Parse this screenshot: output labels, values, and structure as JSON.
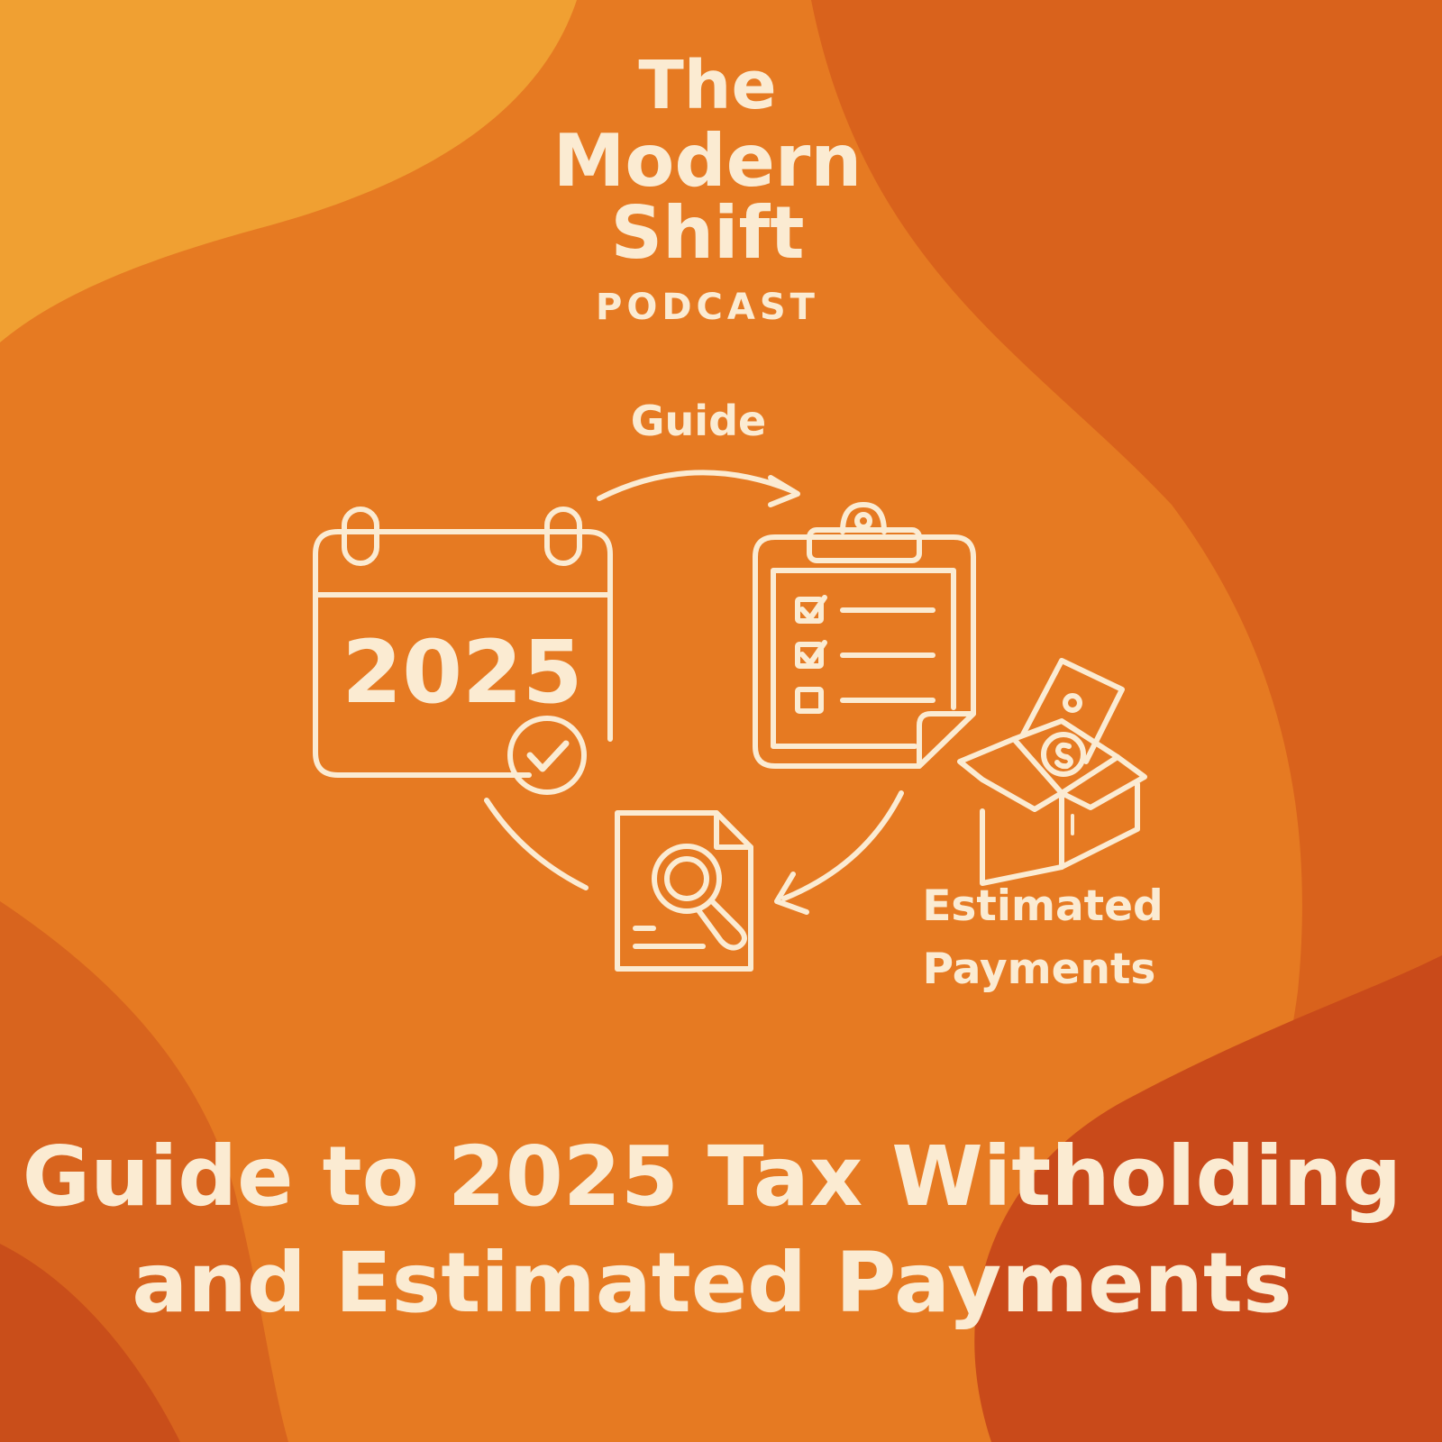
{
  "colors": {
    "background": "#E67A22",
    "highlight": "#F0A032",
    "dark": "#D25A1C",
    "darker": "#C4441A",
    "text": "#FBEBD2"
  },
  "logo": {
    "line1": "The",
    "line2": "Modern",
    "line3": "Shift",
    "line4": "PODCAST"
  },
  "diagram": {
    "guide_label": "Guide",
    "calendar_year": "2025",
    "estimated_label_line1": "Estimated",
    "estimated_label_line2": "Payments",
    "icons": [
      "calendar-check-icon",
      "clipboard-checklist-icon",
      "document-search-icon",
      "money-box-icon",
      "cycle-arrows"
    ]
  },
  "title": {
    "line1": "Guide to 2025 Tax Witholding",
    "line2": "and Estimated Payments"
  }
}
